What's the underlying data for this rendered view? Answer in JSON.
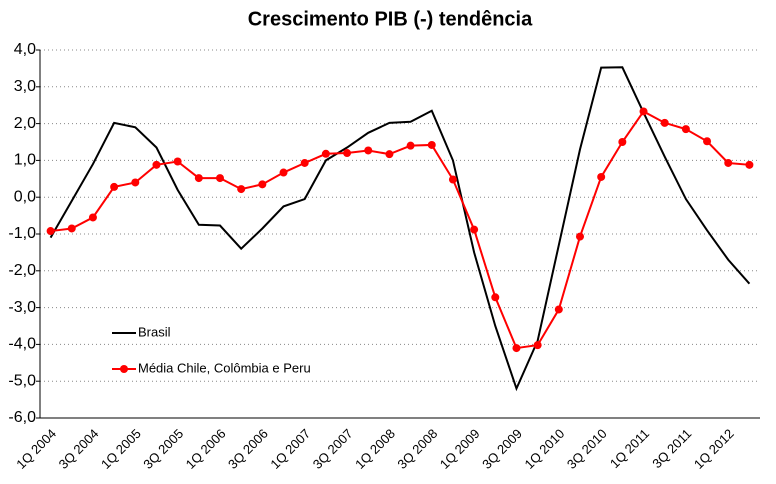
{
  "chart_data": {
    "type": "line",
    "title": "Crescimento PIB (-) tendência",
    "categories": [
      "1Q 2004",
      null,
      "3Q 2004",
      null,
      "1Q 2005",
      null,
      "3Q 2005",
      null,
      "1Q 2006",
      null,
      "3Q 2006",
      null,
      "1Q 2007",
      null,
      "3Q 2007",
      null,
      "1Q 2008",
      null,
      "3Q 2008",
      null,
      "1Q 2009",
      null,
      "3Q 2009",
      null,
      "1Q 2010",
      null,
      "3Q 2010",
      null,
      "1Q 2011",
      null,
      "3Q 2011",
      null,
      "1Q 2012",
      null
    ],
    "series": [
      {
        "name": "Brasil",
        "color": "#000000",
        "markers": false,
        "values": [
          -1.1,
          -0.1,
          0.9,
          2.02,
          1.9,
          1.35,
          0.2,
          -0.75,
          -0.77,
          -1.4,
          -0.85,
          -0.25,
          -0.05,
          1.0,
          1.35,
          1.75,
          2.02,
          2.05,
          2.35,
          1.0,
          -1.5,
          -3.5,
          -5.2,
          -3.9,
          -1.3,
          1.3,
          3.52,
          3.53,
          2.3,
          1.1,
          -0.05,
          -0.9,
          -1.7,
          -2.35
        ]
      },
      {
        "name": "Média Chile, Colômbia e Peru",
        "color": "#ff0000",
        "markers": true,
        "values": [
          -0.92,
          -0.85,
          -0.55,
          0.28,
          0.4,
          0.88,
          0.97,
          0.52,
          0.52,
          0.22,
          0.35,
          0.67,
          0.93,
          1.18,
          1.2,
          1.27,
          1.17,
          1.4,
          1.42,
          0.48,
          -0.88,
          -2.72,
          -4.1,
          -4.02,
          -3.05,
          -1.07,
          0.55,
          1.5,
          2.33,
          2.02,
          1.85,
          1.52,
          0.93,
          0.88
        ]
      }
    ],
    "ylim": [
      -6,
      4
    ],
    "yticks": [
      {
        "value": -6,
        "label": "-6,0"
      },
      {
        "value": -5,
        "label": "-5,0"
      },
      {
        "value": -4,
        "label": "-4,0"
      },
      {
        "value": -3,
        "label": "-3,0"
      },
      {
        "value": -2,
        "label": "-2,0"
      },
      {
        "value": -1,
        "label": "-1,0"
      },
      {
        "value": 0,
        "label": "0,0"
      },
      {
        "value": 1,
        "label": "1,0"
      },
      {
        "value": 2,
        "label": "2,0"
      },
      {
        "value": 3,
        "label": "3,0"
      },
      {
        "value": 4,
        "label": "4,0"
      }
    ],
    "grid": true
  }
}
